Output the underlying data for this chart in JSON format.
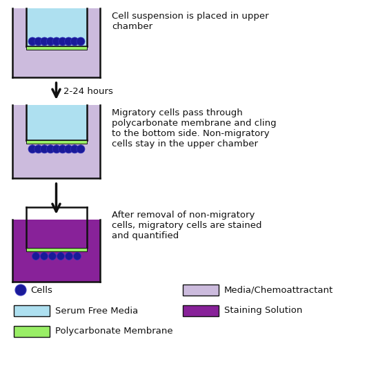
{
  "bg_color": "#ffffff",
  "lavender": "#ccbbdd",
  "light_blue": "#aee0f0",
  "green_membrane": "#99ee66",
  "dark_blue_cell": "#1a1a99",
  "cell_edge": "#3333bb",
  "purple_stain": "#882299",
  "outline_color": "#111111",
  "arrow_color": "#111111",
  "text_color": "#111111",
  "step1_text": "Cell suspension is placed in upper\nchamber",
  "step2_text": "Migratory cells pass through\npolycarbonate membrane and cling\nto the bottom side. Non-migratory\ncells stay in the upper chamber",
  "step3_text": "After removal of non-migratory\ncells, migratory cells are stained\nand quantified",
  "arrow_label": "2-24 hours",
  "figw": 5.32,
  "figh": 5.3,
  "dpi": 100
}
